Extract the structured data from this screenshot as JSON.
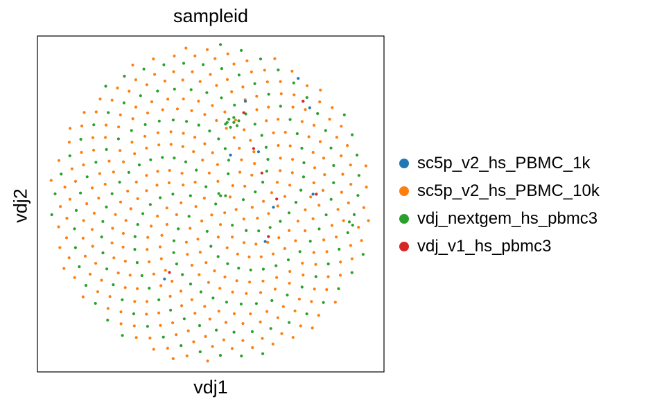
{
  "chart_data": {
    "type": "scatter",
    "title": "sampleid",
    "xlabel": "vdj1",
    "ylabel": "vdj2",
    "xlim": [
      -1.05,
      1.05
    ],
    "ylim": [
      -1.03,
      1.03
    ],
    "grid": false,
    "legend_position": "right",
    "series": [
      {
        "name": "sc5p_v2_hs_PBMC_1k",
        "color": "#1f77b4",
        "points": [
          [
            0.38,
            -0.02
          ],
          [
            0.6,
            0.59
          ],
          [
            0.21,
            0.63
          ],
          [
            0.29,
            0.32
          ],
          [
            0.12,
            0.3
          ],
          [
            -0.28,
            -0.46
          ],
          [
            0.53,
            0.77
          ],
          [
            0.62,
            0.06
          ],
          [
            0.33,
            -0.23
          ]
        ]
      },
      {
        "name": "sc5p_v2_hs_PBMC_10k",
        "color": "#ff7f0e",
        "points": []
      },
      {
        "name": "vdj_nextgem_hs_pbmc3",
        "color": "#2ca02c",
        "points": [
          [
            0.1,
            0.5
          ],
          [
            0.11,
            0.52
          ],
          [
            0.14,
            0.53
          ],
          [
            0.17,
            0.51
          ],
          [
            0.16,
            0.48
          ],
          [
            0.12,
            0.47
          ],
          [
            0.09,
            0.49
          ],
          [
            0.14,
            0.5
          ],
          [
            0.06,
            0.05
          ],
          [
            0.09,
            0.05
          ],
          [
            0.84,
            -0.11
          ],
          [
            0.86,
            -0.13
          ]
        ]
      },
      {
        "name": "vdj_v1_hs_pbmc3",
        "color": "#d62728",
        "points": [
          [
            0.4,
            0.03
          ],
          [
            0.56,
            0.63
          ],
          [
            0.2,
            0.56
          ],
          [
            0.26,
            0.34
          ],
          [
            0.31,
            0.19
          ],
          [
            -0.25,
            -0.42
          ],
          [
            0.56,
            0.63
          ],
          [
            0.64,
            0.06
          ],
          [
            0.35,
            -0.2
          ]
        ]
      }
    ],
    "layout_cloud": {
      "description": "Large circular cloud of sample points; series for most points inferred by stride pattern",
      "n_points": 520
    }
  }
}
